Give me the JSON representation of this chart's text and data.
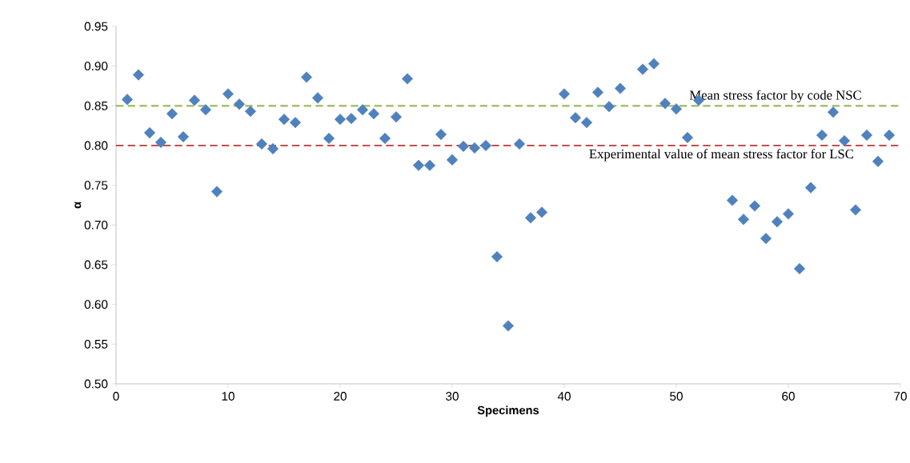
{
  "chart_data": {
    "type": "scatter",
    "xlabel": "Specimens",
    "ylabel": "α",
    "x": [
      1,
      2,
      3,
      4,
      5,
      6,
      7,
      8,
      9,
      10,
      11,
      12,
      13,
      14,
      15,
      16,
      17,
      18,
      19,
      20,
      21,
      22,
      23,
      24,
      25,
      26,
      27,
      28,
      29,
      30,
      31,
      32,
      33,
      34,
      35,
      36,
      37,
      38,
      40,
      41,
      42,
      43,
      44,
      45,
      47,
      48,
      49,
      50,
      51,
      52,
      55,
      56,
      57,
      58,
      59,
      60,
      61,
      62,
      63,
      64,
      65,
      66,
      67,
      68,
      69
    ],
    "values": [
      0.858,
      0.889,
      0.816,
      0.804,
      0.84,
      0.811,
      0.857,
      0.845,
      0.742,
      0.865,
      0.852,
      0.843,
      0.802,
      0.796,
      0.833,
      0.829,
      0.886,
      0.86,
      0.809,
      0.833,
      0.834,
      0.845,
      0.84,
      0.809,
      0.836,
      0.884,
      0.775,
      0.775,
      0.814,
      0.782,
      0.799,
      0.797,
      0.8,
      0.66,
      0.573,
      0.802,
      0.709,
      0.716,
      0.865,
      0.835,
      0.829,
      0.867,
      0.849,
      0.872,
      0.896,
      0.903,
      0.853,
      0.846,
      0.81,
      0.857,
      0.731,
      0.707,
      0.724,
      0.683,
      0.704,
      0.714,
      0.645,
      0.747,
      0.813,
      0.842,
      0.806,
      0.719,
      0.813,
      0.78,
      0.813
    ],
    "color": "#4f81bd",
    "marker": "diamond",
    "xlim": [
      0,
      70
    ],
    "xticks": [
      0,
      10,
      20,
      30,
      40,
      50,
      60,
      70
    ],
    "ylim": [
      0.5,
      0.95
    ],
    "yticks": [
      {
        "value": 0.5,
        "label": "0.50"
      },
      {
        "value": 0.55,
        "label": "0.55"
      },
      {
        "value": 0.6,
        "label": "0.60"
      },
      {
        "value": 0.65,
        "label": "0.65"
      },
      {
        "value": 0.7,
        "label": "0.70"
      },
      {
        "value": 0.75,
        "label": "0.75"
      },
      {
        "value": 0.8,
        "label": "0.80"
      },
      {
        "value": 0.85,
        "label": "0.85"
      },
      {
        "value": 0.9,
        "label": "0.90"
      },
      {
        "value": 0.95,
        "label": "0.95"
      }
    ],
    "ref_lines": [
      {
        "axis": "y",
        "value": 0.85,
        "label": "Mean stress factor by code NSC",
        "color": "#9bbb59",
        "line_style": "dashed"
      },
      {
        "axis": "y",
        "value": 0.8,
        "label": "Experimental value of mean stress factor for LSC",
        "color": "#c0504d",
        "line_style": "dashed"
      }
    ],
    "grid": false
  }
}
